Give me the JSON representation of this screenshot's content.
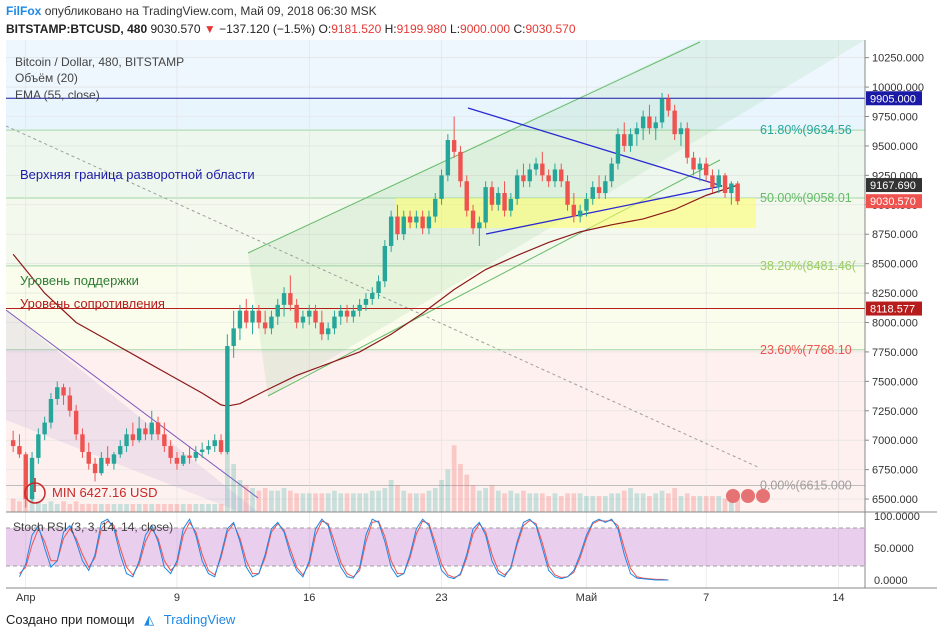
{
  "header": {
    "brand": "FilFox",
    "published": "опубликовано на TradingView.com, Май 09, 2018 06:30 MSK",
    "symbol": "BITSTAMP:BTCUSD, 480",
    "last": "9030.570",
    "change": "−137.120 (−1.5%)",
    "o_label": "O:",
    "o": "9181.520",
    "h_label": "H:",
    "h": "9199.980",
    "l_label": "L:",
    "l": "9000.000",
    "c_label": "C:",
    "c": "9030.570"
  },
  "legend": {
    "title": "Bitcoin / Dollar, 480, BITSTAMP",
    "volume": "Объём (20)",
    "ema": "EMA (55, close)"
  },
  "annotations": {
    "upper_bound": "Верхняя граница разворотной области",
    "support": "Уровень поддержки",
    "resistance": "Уровень сопротивления",
    "min_label": "MIN 6427.16 USD"
  },
  "price_labels": {
    "line_9905": "9905.000",
    "ema_value": "9167.690",
    "last_price": "9030.570",
    "line_8118": "8118.577"
  },
  "stoch": {
    "title": "Stoch RSI (3, 3, 14, 14, close)",
    "ticks": [
      "100.0000",
      "50.0000",
      "0.0000"
    ]
  },
  "footer": {
    "created": "Создано при помощи",
    "logo": "TradingView"
  },
  "chart_data": {
    "type": "candlestick",
    "y_ticks": [
      "10250.000",
      "10000.000",
      "9750.000",
      "9500.000",
      "9250.000",
      "9000.000",
      "8750.000",
      "8500.000",
      "8250.000",
      "8000.000",
      "7750.000",
      "7500.000",
      "7250.000",
      "7000.000",
      "6750.000",
      "6500.000"
    ],
    "y_tick_values": [
      10250,
      10000,
      9750,
      9500,
      9250,
      9000,
      8750,
      8500,
      8250,
      8000,
      7750,
      7500,
      7250,
      7000,
      6750,
      6500
    ],
    "ylim": [
      6390,
      10400
    ],
    "x_ticks": [
      {
        "label": "Апр",
        "index": 2
      },
      {
        "label": "9",
        "index": 26
      },
      {
        "label": "16",
        "index": 47
      },
      {
        "label": "23",
        "index": 68
      },
      {
        "label": "Май",
        "index": 91
      },
      {
        "label": "7",
        "index": 110
      },
      {
        "label": "14",
        "index": 131
      }
    ],
    "n_slots": 138,
    "fibonacci": [
      {
        "label": "61.80%(9634.56",
        "value": 9634.56
      },
      {
        "label": "50.00%(9058.01",
        "value": 9058.01
      },
      {
        "label": "38.20%(8481.46(",
        "value": 8481.46
      },
      {
        "label": "23.60%(7768.10",
        "value": 7768.1
      },
      {
        "label": "0.00%(6615.000",
        "value": 6615.0
      }
    ],
    "fib_100": 9905.0,
    "horizontal_lines": [
      {
        "name": "9905 line",
        "value": 9905.0,
        "color": "#1a1aa6"
      },
      {
        "name": "8118 line",
        "value": 8118.577,
        "color": "#b71c1c"
      }
    ],
    "colors": {
      "up": "#26a69a",
      "down": "#ef5350",
      "ema": "#8b1a1a",
      "fib_line": "#66bb6a",
      "triangle": "#2a2ad1",
      "channel": "#43a047"
    },
    "candles": [
      [
        7000,
        7080,
        6900,
        6950
      ],
      [
        6950,
        7050,
        6850,
        6880
      ],
      [
        6880,
        6900,
        6427,
        6500
      ],
      [
        6500,
        6900,
        6480,
        6850
      ],
      [
        6850,
        7100,
        6800,
        7050
      ],
      [
        7050,
        7200,
        7000,
        7150
      ],
      [
        7150,
        7400,
        7100,
        7350
      ],
      [
        7350,
        7500,
        7300,
        7450
      ],
      [
        7450,
        7480,
        7300,
        7380
      ],
      [
        7380,
        7450,
        7200,
        7250
      ],
      [
        7250,
        7300,
        7000,
        7050
      ],
      [
        7050,
        7100,
        6850,
        6900
      ],
      [
        6900,
        6980,
        6750,
        6800
      ],
      [
        6800,
        6850,
        6650,
        6720
      ],
      [
        6720,
        6900,
        6700,
        6850
      ],
      [
        6850,
        6950,
        6780,
        6800
      ],
      [
        6800,
        6900,
        6750,
        6880
      ],
      [
        6880,
        7000,
        6850,
        6950
      ],
      [
        6950,
        7100,
        6900,
        7050
      ],
      [
        7050,
        7150,
        6950,
        7000
      ],
      [
        7000,
        7200,
        6980,
        7100
      ],
      [
        7100,
        7150,
        7000,
        7050
      ],
      [
        7050,
        7250,
        7000,
        7150
      ],
      [
        7150,
        7200,
        7000,
        7050
      ],
      [
        7050,
        7150,
        6900,
        6950
      ],
      [
        6950,
        7000,
        6800,
        6850
      ],
      [
        6850,
        6900,
        6750,
        6800
      ],
      [
        6800,
        6900,
        6780,
        6870
      ],
      [
        6870,
        6950,
        6800,
        6850
      ],
      [
        6850,
        6950,
        6820,
        6900
      ],
      [
        6900,
        6980,
        6850,
        6920
      ],
      [
        6920,
        7000,
        6880,
        6950
      ],
      [
        6950,
        7050,
        6900,
        7000
      ],
      [
        7000,
        7050,
        6880,
        6900
      ],
      [
        6900,
        7900,
        6880,
        7800
      ],
      [
        7800,
        8100,
        7700,
        7950
      ],
      [
        7950,
        8150,
        7850,
        8100
      ],
      [
        8100,
        8200,
        7950,
        8000
      ],
      [
        8000,
        8150,
        7900,
        8100
      ],
      [
        8100,
        8150,
        7950,
        8000
      ],
      [
        8000,
        8100,
        7900,
        7950
      ],
      [
        7950,
        8100,
        7900,
        8050
      ],
      [
        8050,
        8200,
        7980,
        8150
      ],
      [
        8150,
        8300,
        8050,
        8250
      ],
      [
        8250,
        8400,
        8100,
        8150
      ],
      [
        8150,
        8200,
        7950,
        8000
      ],
      [
        8000,
        8100,
        7950,
        8050
      ],
      [
        8050,
        8150,
        7980,
        8100
      ],
      [
        8100,
        8150,
        7950,
        8000
      ],
      [
        8000,
        8100,
        7850,
        7900
      ],
      [
        7900,
        8000,
        7850,
        7950
      ],
      [
        7950,
        8100,
        7900,
        8050
      ],
      [
        8050,
        8150,
        7980,
        8100
      ],
      [
        8100,
        8150,
        8000,
        8050
      ],
      [
        8050,
        8150,
        8000,
        8100
      ],
      [
        8100,
        8200,
        8050,
        8150
      ],
      [
        8150,
        8250,
        8100,
        8200
      ],
      [
        8200,
        8300,
        8150,
        8250
      ],
      [
        8250,
        8400,
        8200,
        8350
      ],
      [
        8350,
        8700,
        8300,
        8650
      ],
      [
        8650,
        8950,
        8600,
        8900
      ],
      [
        8900,
        9000,
        8700,
        8750
      ],
      [
        8750,
        8950,
        8700,
        8900
      ],
      [
        8900,
        8950,
        8800,
        8850
      ],
      [
        8850,
        8950,
        8800,
        8900
      ],
      [
        8900,
        8950,
        8750,
        8800
      ],
      [
        8800,
        8950,
        8750,
        8900
      ],
      [
        8900,
        9100,
        8850,
        9050
      ],
      [
        9050,
        9300,
        9000,
        9250
      ],
      [
        9250,
        9600,
        9200,
        9550
      ],
      [
        9550,
        9750,
        9400,
        9450
      ],
      [
        9450,
        9500,
        9150,
        9200
      ],
      [
        9200,
        9250,
        8900,
        8950
      ],
      [
        8950,
        9000,
        8750,
        8800
      ],
      [
        8800,
        8900,
        8650,
        8850
      ],
      [
        8850,
        9200,
        8800,
        9150
      ],
      [
        9150,
        9200,
        8950,
        9000
      ],
      [
        9000,
        9150,
        8950,
        9100
      ],
      [
        9100,
        9200,
        8900,
        8950
      ],
      [
        8950,
        9100,
        8900,
        9050
      ],
      [
        9050,
        9300,
        9000,
        9250
      ],
      [
        9250,
        9350,
        9150,
        9200
      ],
      [
        9200,
        9350,
        9150,
        9300
      ],
      [
        9300,
        9400,
        9250,
        9350
      ],
      [
        9350,
        9450,
        9200,
        9250
      ],
      [
        9250,
        9300,
        9150,
        9200
      ],
      [
        9200,
        9350,
        9150,
        9300
      ],
      [
        9300,
        9350,
        9150,
        9200
      ],
      [
        9200,
        9250,
        8950,
        9000
      ],
      [
        9000,
        9100,
        8850,
        8900
      ],
      [
        8900,
        9000,
        8850,
        8950
      ],
      [
        8950,
        9100,
        8900,
        9050
      ],
      [
        9050,
        9200,
        9000,
        9150
      ],
      [
        9150,
        9250,
        9050,
        9100
      ],
      [
        9100,
        9250,
        9050,
        9200
      ],
      [
        9200,
        9400,
        9150,
        9350
      ],
      [
        9350,
        9650,
        9300,
        9600
      ],
      [
        9600,
        9700,
        9450,
        9500
      ],
      [
        9500,
        9650,
        9450,
        9600
      ],
      [
        9600,
        9700,
        9500,
        9650
      ],
      [
        9650,
        9800,
        9550,
        9750
      ],
      [
        9750,
        9850,
        9600,
        9650
      ],
      [
        9650,
        9750,
        9550,
        9700
      ],
      [
        9700,
        9950,
        9650,
        9900
      ],
      [
        9900,
        9940,
        9750,
        9800
      ],
      [
        9800,
        9850,
        9550,
        9600
      ],
      [
        9600,
        9700,
        9500,
        9650
      ],
      [
        9650,
        9700,
        9350,
        9400
      ],
      [
        9400,
        9450,
        9250,
        9300
      ],
      [
        9300,
        9400,
        9200,
        9350
      ],
      [
        9350,
        9400,
        9200,
        9250
      ],
      [
        9250,
        9300,
        9100,
        9150
      ],
      [
        9150,
        9300,
        9100,
        9250
      ],
      [
        9250,
        9270,
        9060,
        9100
      ],
      [
        9100,
        9200,
        9000,
        9181
      ],
      [
        9181,
        9200,
        9000,
        9030
      ]
    ],
    "ema": [
      [
        0,
        8580
      ],
      [
        5,
        8250
      ],
      [
        10,
        8000
      ],
      [
        15,
        7850
      ],
      [
        20,
        7700
      ],
      [
        25,
        7550
      ],
      [
        30,
        7400
      ],
      [
        33,
        7300
      ],
      [
        34,
        7290
      ],
      [
        36,
        7310
      ],
      [
        40,
        7420
      ],
      [
        45,
        7550
      ],
      [
        50,
        7650
      ],
      [
        55,
        7750
      ],
      [
        60,
        7900
      ],
      [
        65,
        8080
      ],
      [
        70,
        8280
      ],
      [
        75,
        8450
      ],
      [
        80,
        8570
      ],
      [
        85,
        8680
      ],
      [
        90,
        8770
      ],
      [
        95,
        8830
      ],
      [
        100,
        8880
      ],
      [
        105,
        8960
      ],
      [
        110,
        9080
      ],
      [
        115,
        9167
      ]
    ],
    "volume": [
      5,
      4,
      9,
      6,
      4,
      3,
      4,
      3,
      4,
      3,
      4,
      3,
      3,
      3,
      3,
      3,
      3,
      3,
      3,
      3,
      3,
      3,
      3,
      3,
      3,
      3,
      3,
      3,
      3,
      3,
      3,
      3,
      3,
      3,
      30,
      18,
      12,
      10,
      9,
      8,
      9,
      8,
      8,
      9,
      8,
      7,
      7,
      7,
      7,
      7,
      7,
      8,
      7,
      7,
      7,
      7,
      7,
      8,
      8,
      9,
      12,
      10,
      8,
      7,
      7,
      7,
      8,
      9,
      12,
      16,
      25,
      18,
      14,
      10,
      8,
      9,
      10,
      8,
      7,
      8,
      7,
      8,
      7,
      7,
      7,
      6,
      7,
      6,
      7,
      7,
      7,
      6,
      6,
      6,
      6,
      7,
      7,
      8,
      9,
      7,
      7,
      6,
      7,
      8,
      7,
      9,
      6,
      7,
      6,
      6,
      6,
      6,
      6,
      5,
      5,
      5
    ],
    "volume_max": 30,
    "stoch_k": [
      5,
      25,
      70,
      85,
      50,
      20,
      30,
      75,
      85,
      60,
      30,
      15,
      40,
      90,
      95,
      80,
      40,
      10,
      5,
      30,
      70,
      85,
      60,
      20,
      10,
      30,
      80,
      95,
      70,
      30,
      10,
      5,
      40,
      80,
      90,
      60,
      20,
      5,
      10,
      40,
      80,
      90,
      75,
      40,
      15,
      5,
      30,
      80,
      95,
      85,
      50,
      20,
      5,
      3,
      20,
      70,
      95,
      90,
      60,
      20,
      5,
      10,
      40,
      80,
      95,
      85,
      50,
      15,
      5,
      2,
      10,
      40,
      80,
      90,
      70,
      30,
      10,
      5,
      20,
      60,
      90,
      95,
      85,
      50,
      15,
      5,
      2,
      5,
      15,
      40,
      70,
      90,
      95,
      90,
      95,
      80,
      40,
      10,
      3,
      2,
      1,
      0,
      0,
      0
    ],
    "stoch_d": [
      10,
      20,
      55,
      80,
      60,
      30,
      30,
      65,
      80,
      65,
      40,
      20,
      35,
      80,
      92,
      85,
      50,
      20,
      8,
      25,
      60,
      80,
      65,
      30,
      15,
      25,
      70,
      90,
      75,
      40,
      15,
      8,
      35,
      75,
      88,
      65,
      30,
      10,
      10,
      35,
      75,
      88,
      78,
      48,
      20,
      8,
      25,
      70,
      92,
      88,
      60,
      28,
      10,
      5,
      15,
      60,
      90,
      92,
      68,
      30,
      10,
      10,
      35,
      72,
      92,
      88,
      58,
      25,
      8,
      4,
      8,
      35,
      72,
      88,
      75,
      40,
      15,
      8,
      18,
      55,
      85,
      93,
      88,
      58,
      22,
      8,
      4,
      5,
      12,
      35,
      65,
      88,
      93,
      92,
      93,
      85,
      50,
      18,
      5,
      3,
      2,
      1,
      1,
      0
    ]
  }
}
